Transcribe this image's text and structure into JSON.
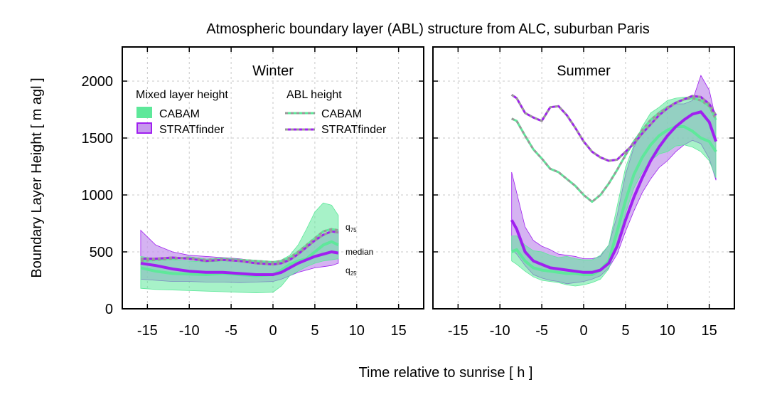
{
  "chart_data": {
    "type": "area",
    "title": "Atmospheric boundary layer (ABL) structure from ALC, suburban Paris",
    "xlabel": "Time relative to sunrise [ h ]",
    "ylabel": "Boundary Layer Height [ m agl ]",
    "xlim": [
      -18,
      18
    ],
    "ylim": [
      0,
      2300
    ],
    "xticks": [
      -15,
      -10,
      -5,
      0,
      5,
      10,
      15
    ],
    "yticks": [
      0,
      500,
      1000,
      1500,
      2000
    ],
    "grid": true,
    "colors": {
      "cabam": "#5ee89a",
      "stratfinder": "#a020f0",
      "stratfinder_fill": "#c799ee",
      "overlap_fill": "#7aa2b6",
      "abl_dash": "#999999",
      "grid": "#c8c8c8"
    },
    "legend": {
      "mlh_header": "Mixed layer height",
      "abl_header": "ABL height",
      "cabam": "CABAM",
      "stratfinder": "STRATfinder",
      "placement": "top-left of left panel"
    },
    "annotations": {
      "q75": "q",
      "q75_sub": "75",
      "median": "median",
      "q25": "q",
      "q25_sub": "25"
    },
    "panels": [
      {
        "name": "Winter",
        "x": [
          -15.8,
          -14,
          -12,
          -10,
          -8,
          -6,
          -4,
          -2,
          0,
          1,
          2,
          3,
          4,
          5,
          6,
          7,
          7.8
        ],
        "cabam_mlh": {
          "q25": [
            180,
            170,
            165,
            160,
            155,
            150,
            145,
            140,
            145,
            200,
            290,
            330,
            370,
            400,
            420,
            430,
            440
          ],
          "median": [
            360,
            330,
            310,
            305,
            300,
            310,
            300,
            290,
            300,
            340,
            390,
            420,
            440,
            500,
            560,
            590,
            560
          ],
          "q75": [
            460,
            440,
            430,
            420,
            410,
            420,
            420,
            410,
            400,
            430,
            470,
            560,
            700,
            850,
            930,
            910,
            820
          ]
        },
        "stratfinder_mlh": {
          "q25": [
            260,
            250,
            240,
            240,
            235,
            235,
            230,
            235,
            240,
            260,
            290,
            320,
            340,
            360,
            370,
            380,
            400
          ],
          "median": [
            400,
            380,
            350,
            330,
            320,
            320,
            310,
            300,
            300,
            320,
            360,
            400,
            430,
            460,
            480,
            500,
            490
          ],
          "q75": [
            690,
            560,
            500,
            470,
            460,
            450,
            440,
            420,
            400,
            420,
            450,
            500,
            560,
            610,
            650,
            680,
            690
          ]
        },
        "abl_cabam": [
          420,
          430,
          440,
          450,
          430,
          440,
          430,
          420,
          410,
          420,
          450,
          500,
          560,
          620,
          680,
          700,
          690
        ],
        "abl_stratfinder": [
          440,
          440,
          450,
          440,
          420,
          430,
          420,
          400,
          390,
          400,
          430,
          480,
          540,
          600,
          650,
          680,
          670
        ]
      },
      {
        "name": "Summer",
        "x": [
          -8.6,
          -8,
          -7,
          -6,
          -5,
          -4,
          -3,
          -2,
          -1,
          0,
          1,
          2,
          3,
          4,
          5,
          6,
          7,
          8,
          9,
          10,
          11,
          12,
          13,
          14,
          15,
          15.8
        ],
        "cabam_mlh": {
          "q25": [
            420,
            390,
            330,
            280,
            250,
            240,
            230,
            210,
            200,
            210,
            230,
            260,
            350,
            560,
            840,
            1060,
            1200,
            1300,
            1360,
            1380,
            1430,
            1440,
            1420,
            1380,
            1300,
            1150
          ],
          "median": [
            500,
            520,
            420,
            360,
            340,
            330,
            320,
            310,
            310,
            300,
            300,
            340,
            420,
            680,
            950,
            1180,
            1330,
            1440,
            1520,
            1570,
            1600,
            1600,
            1560,
            1500,
            1470,
            1380
          ],
          "q75": [
            640,
            640,
            560,
            510,
            500,
            470,
            450,
            460,
            440,
            430,
            430,
            470,
            560,
            900,
            1240,
            1440,
            1600,
            1720,
            1770,
            1830,
            1850,
            1860,
            1860,
            1860,
            1800,
            1700
          ]
        },
        "stratfinder_mlh": {
          "q25": [
            520,
            480,
            380,
            300,
            270,
            250,
            240,
            220,
            230,
            240,
            260,
            290,
            360,
            480,
            680,
            860,
            1020,
            1140,
            1240,
            1300,
            1380,
            1440,
            1480,
            1450,
            1320,
            1130
          ],
          "median": [
            780,
            700,
            500,
            420,
            390,
            360,
            350,
            340,
            330,
            320,
            320,
            340,
            400,
            550,
            780,
            980,
            1150,
            1300,
            1420,
            1520,
            1600,
            1660,
            1710,
            1730,
            1640,
            1470
          ],
          "q75": [
            1200,
            1020,
            720,
            600,
            550,
            520,
            480,
            470,
            460,
            440,
            440,
            460,
            560,
            820,
            1180,
            1420,
            1560,
            1660,
            1730,
            1780,
            1800,
            1800,
            1830,
            2050,
            1920,
            1660
          ]
        },
        "abl_cabam": [
          1670,
          1650,
          1520,
          1400,
          1320,
          1230,
          1200,
          1140,
          1080,
          1000,
          940,
          1000,
          1100,
          1220,
          1350,
          1470,
          1570,
          1660,
          1720,
          1770,
          1810,
          1840,
          1850,
          1830,
          1780,
          1660
        ],
        "abl_stratfinder": [
          1880,
          1850,
          1720,
          1680,
          1650,
          1770,
          1780,
          1700,
          1590,
          1470,
          1380,
          1330,
          1300,
          1310,
          1380,
          1450,
          1540,
          1620,
          1700,
          1760,
          1810,
          1840,
          1870,
          1860,
          1800,
          1700
        ]
      }
    ]
  }
}
